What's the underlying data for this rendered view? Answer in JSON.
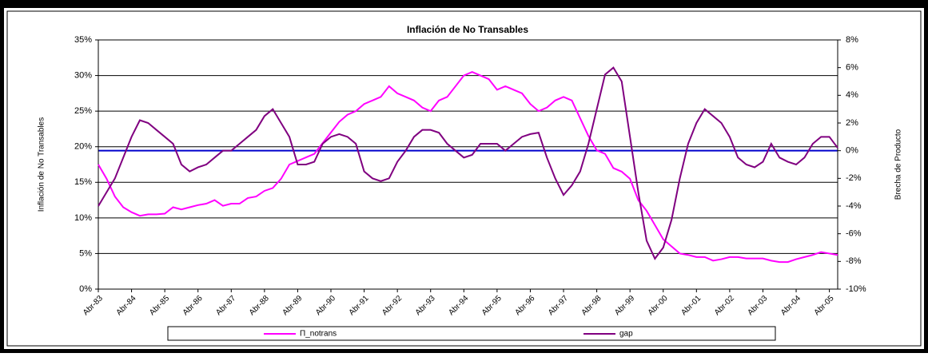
{
  "chart_data": {
    "type": "line",
    "title": "Inflación de No Transables",
    "y_label": "Inflación de No Transables",
    "y2_label": "Brecha de Producto",
    "categories": [
      "Abr-83",
      null,
      null,
      null,
      "Abr-84",
      null,
      null,
      null,
      "Abr-85",
      null,
      null,
      null,
      "Abr-86",
      null,
      null,
      null,
      "Abr-87",
      null,
      null,
      null,
      "Abr-88",
      null,
      null,
      null,
      "Abr-89",
      null,
      null,
      null,
      "Abr-90",
      null,
      null,
      null,
      "Abr-91",
      null,
      null,
      null,
      "Abr-92",
      null,
      null,
      null,
      "Abr-93",
      null,
      null,
      null,
      "Abr-94",
      null,
      null,
      null,
      "Abr-95",
      null,
      null,
      null,
      "Abr-96",
      null,
      null,
      null,
      "Abr-97",
      null,
      null,
      null,
      "Abr-98",
      null,
      null,
      null,
      "Abr-99",
      null,
      null,
      null,
      "Abr-00",
      null,
      null,
      null,
      "Abr-01",
      null,
      null,
      null,
      "Abr-02",
      null,
      null,
      null,
      "Abr-03",
      null,
      null,
      null,
      "Abr-04",
      null,
      null,
      null,
      "Abr-05",
      null
    ],
    "series": [
      {
        "name": "Π_notrans",
        "color": "#ff00ff",
        "axis": "y",
        "values": [
          17.5,
          15.5,
          13,
          11.5,
          10.8,
          10.3,
          10.5,
          10.5,
          10.6,
          11.5,
          11.2,
          11.5,
          11.8,
          12,
          12.5,
          11.7,
          12,
          12,
          12.8,
          13,
          13.8,
          14.2,
          15.5,
          17.5,
          18,
          18.5,
          19,
          20.5,
          22,
          23.5,
          24.5,
          25,
          26,
          26.5,
          27,
          28.5,
          27.5,
          27,
          26.5,
          25.5,
          25,
          26.5,
          27,
          28.5,
          30,
          30.5,
          30,
          29.5,
          28,
          28.5,
          28,
          27.5,
          26,
          25,
          25.5,
          26.5,
          27,
          26.5,
          24,
          21.5,
          19.5,
          19,
          17,
          16.5,
          15.5,
          12.5,
          11,
          9,
          7,
          6,
          5,
          4.8,
          4.5,
          4.5,
          4,
          4.2,
          4.5,
          4.5,
          4.3,
          4.3,
          4.3,
          4,
          3.8,
          3.8,
          4.2,
          4.5,
          4.8,
          5.2,
          5,
          4.8
        ]
      },
      {
        "name": "gap",
        "color": "#800080",
        "axis": "y2",
        "values": [
          -4,
          -3,
          -2,
          -0.5,
          1,
          2.2,
          2,
          1.5,
          1,
          0.5,
          -1,
          -1.5,
          -1.2,
          -1,
          -0.5,
          0,
          0,
          0.5,
          1,
          1.5,
          2.5,
          3,
          2,
          1,
          -1,
          -1,
          -0.8,
          0.5,
          1,
          1.2,
          1,
          0.5,
          -1.5,
          -2,
          -2.2,
          -2,
          -0.8,
          0,
          1,
          1.5,
          1.5,
          1.3,
          0.5,
          0,
          -0.5,
          -0.3,
          0.5,
          0.5,
          0.5,
          0,
          0.5,
          1,
          1.2,
          1.3,
          -0.5,
          -2,
          -3.2,
          -2.5,
          -1.5,
          0.5,
          3,
          5.5,
          6,
          5,
          1,
          -3,
          -6.5,
          -7.8,
          -7,
          -5,
          -2,
          0.5,
          2,
          3,
          2.5,
          2,
          1,
          -0.5,
          -1,
          -1.2,
          -0.8,
          0.5,
          -0.5,
          -0.8,
          -1,
          -0.5,
          0.5,
          1,
          1,
          0.2
        ]
      }
    ],
    "ylim": [
      0,
      35
    ],
    "yticks": [
      {
        "value": 0,
        "label": "0%"
      },
      {
        "value": 5,
        "label": "5%"
      },
      {
        "value": 10,
        "label": "10%"
      },
      {
        "value": 15,
        "label": "15%"
      },
      {
        "value": 20,
        "label": "20%"
      },
      {
        "value": 25,
        "label": "25%"
      },
      {
        "value": 30,
        "label": "30%"
      },
      {
        "value": 35,
        "label": "35%"
      }
    ],
    "y2lim": [
      -10,
      8
    ],
    "y2ticks": [
      {
        "value": -10,
        "label": "-10%"
      },
      {
        "value": -8,
        "label": "-8%"
      },
      {
        "value": -6,
        "label": "-6%"
      },
      {
        "value": -4,
        "label": "-4%"
      },
      {
        "value": -2,
        "label": "-2%"
      },
      {
        "value": 0,
        "label": "0%"
      },
      {
        "value": 2,
        "label": "2%"
      },
      {
        "value": 4,
        "label": "4%"
      },
      {
        "value": 6,
        "label": "6%"
      },
      {
        "value": 8,
        "label": "8%"
      }
    ],
    "grid": true,
    "zero_line_color": "#0000cc",
    "legend": "bottom"
  }
}
